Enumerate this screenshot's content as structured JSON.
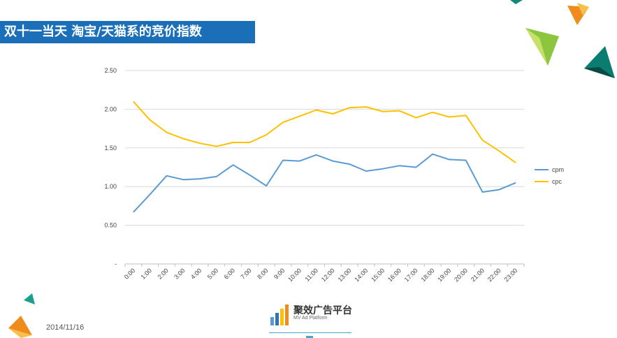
{
  "page": {
    "title": "双十一当天 淘宝/天猫系的竞价指数",
    "date": "2014/11/16"
  },
  "logo": {
    "name": "聚效广告平台",
    "subtitle": "MV Ad Platform"
  },
  "colors": {
    "title_bg": "#1b6fb8",
    "cpm": "#5b9bd5",
    "cpc": "#ffc000"
  },
  "chart_data": {
    "type": "line",
    "categories": [
      "0:00",
      "1:00",
      "2:00",
      "3:00",
      "4:00",
      "5:00",
      "6:00",
      "7:00",
      "8:00",
      "9:00",
      "10:00",
      "11:00",
      "12:00",
      "13:00",
      "14:00",
      "15:00",
      "16:00",
      "17:00",
      "18:00",
      "19:00",
      "20:00",
      "21:00",
      "22:00",
      "23:00"
    ],
    "y_tick_labels": [
      "-",
      "0.50",
      "1.00",
      "1.50",
      "2.00",
      "2.50"
    ],
    "ylim": [
      0,
      2.5
    ],
    "grid": true,
    "legend_position": "right",
    "series": [
      {
        "name": "cpm",
        "values": [
          0.67,
          0.9,
          1.14,
          1.09,
          1.1,
          1.13,
          1.28,
          1.15,
          1.01,
          1.34,
          1.33,
          1.41,
          1.33,
          1.29,
          1.2,
          1.23,
          1.27,
          1.25,
          1.42,
          1.35,
          1.34,
          0.93,
          0.96,
          1.05
        ]
      },
      {
        "name": "cpc",
        "values": [
          2.1,
          1.86,
          1.7,
          1.62,
          1.56,
          1.52,
          1.57,
          1.57,
          1.67,
          1.83,
          1.91,
          1.99,
          1.94,
          2.02,
          2.03,
          1.97,
          1.98,
          1.89,
          1.96,
          1.9,
          1.92,
          1.6,
          1.46,
          1.31
        ]
      }
    ]
  }
}
